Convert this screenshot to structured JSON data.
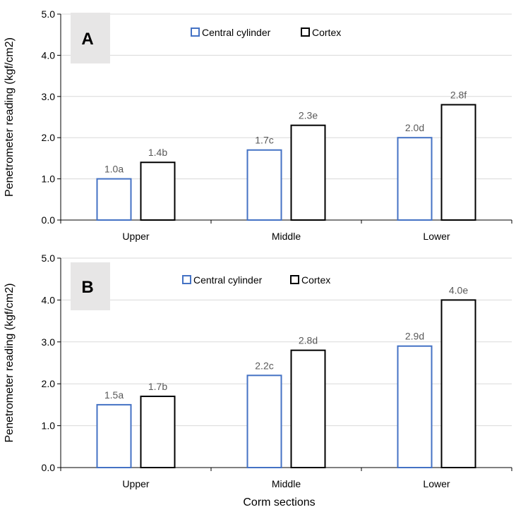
{
  "chart_data": [
    {
      "type": "bar",
      "panel_label": "A",
      "categories": [
        "Upper",
        "Middle",
        "Lower"
      ],
      "series": [
        {
          "name": "Central cylinder",
          "values": [
            1.0,
            1.7,
            2.0
          ],
          "labels": [
            "1.0a",
            "1.7c",
            "2.0d"
          ],
          "color": "#4472C4"
        },
        {
          "name": "Cortex",
          "values": [
            1.4,
            2.3,
            2.8
          ],
          "labels": [
            "1.4b",
            "2.3e",
            "2.8f"
          ],
          "color": "#000000"
        }
      ],
      "y_ticks": [
        "0.0",
        "1.0",
        "2.0",
        "3.0",
        "4.0",
        "5.0"
      ],
      "ylabel": "Penetrometer reading (kgf/cm2)",
      "xlabel": "",
      "ylim": [
        0,
        5
      ],
      "grid": true,
      "legend": "top-center"
    },
    {
      "type": "bar",
      "panel_label": "B",
      "categories": [
        "Upper",
        "Middle",
        "Lower"
      ],
      "series": [
        {
          "name": "Central cylinder",
          "values": [
            1.5,
            2.2,
            2.9
          ],
          "labels": [
            "1.5a",
            "2.2c",
            "2.9d"
          ],
          "color": "#4472C4"
        },
        {
          "name": "Cortex",
          "values": [
            1.7,
            2.8,
            4.0
          ],
          "labels": [
            "1.7b",
            "2.8d",
            "4.0e"
          ],
          "color": "#000000"
        }
      ],
      "y_ticks": [
        "0.0",
        "1.0",
        "2.0",
        "3.0",
        "4.0",
        "5.0"
      ],
      "ylabel": "Penetrometer reading (kgf/cm2)",
      "xlabel": "Corm sections",
      "ylim": [
        0,
        5
      ],
      "grid": true,
      "legend": "top-center"
    }
  ]
}
